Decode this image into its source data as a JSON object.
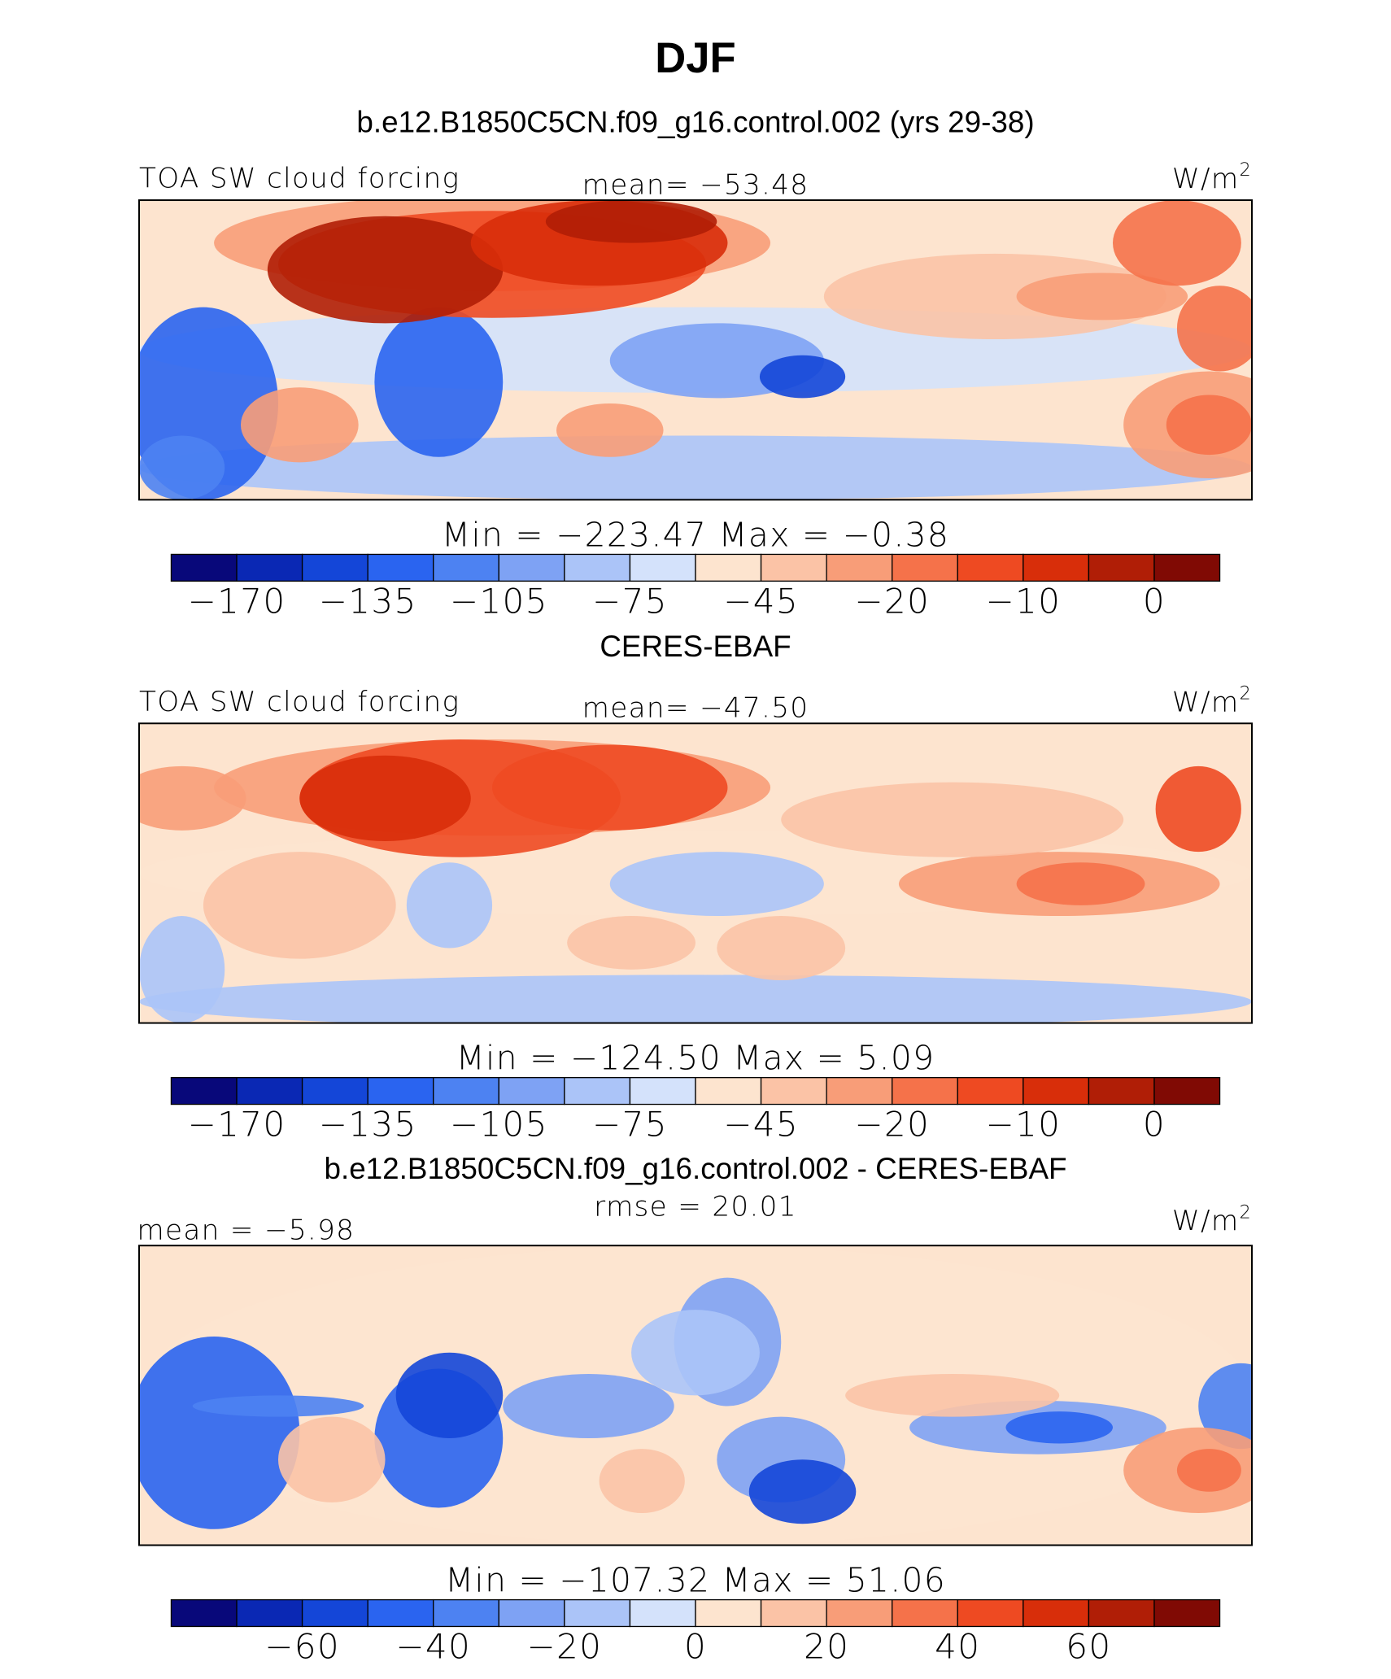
{
  "title": "DJF",
  "colorbar_colors": [
    "#08087a",
    "#0a28b4",
    "#1446d8",
    "#2a64f0",
    "#4d82f2",
    "#7ea2f4",
    "#abc4f8",
    "#d4e2fb",
    "#fde4cf",
    "#fbc3a6",
    "#f89d78",
    "#f5724a",
    "#ee4a22",
    "#d82e0a",
    "#b01e06",
    "#800a04"
  ],
  "panels": [
    {
      "header": "b.e12.B1850C5CN.f09_g16.control.002 (yrs 29-38)",
      "left": "TOA SW cloud forcing",
      "center": "mean= −53.48",
      "units": {
        "base": "W/m",
        "sup": "2"
      },
      "stats": "Min = −223.47  Max =  −0.38",
      "colorbar_ticks": [
        {
          "value": -170,
          "label": "−170"
        },
        {
          "value": -135,
          "label": "−135"
        },
        {
          "value": -105,
          "label": "−105"
        },
        {
          "value": -75,
          "label": "−75"
        },
        {
          "value": -45,
          "label": "−45"
        },
        {
          "value": -20,
          "label": "−20"
        },
        {
          "value": -10,
          "label": "−10"
        },
        0
      ]
    },
    {
      "header": "CERES-EBAF",
      "left": "TOA SW cloud forcing",
      "center": "mean= −47.50",
      "units": {
        "base": "W/m",
        "sup": "2"
      },
      "stats": "Min = −124.50  Max =   5.09",
      "colorbar_ticks": [
        {
          "value": -170,
          "label": "−170"
        },
        {
          "value": -135,
          "label": "−135"
        },
        {
          "value": -105,
          "label": "−105"
        },
        {
          "value": -75,
          "label": "−75"
        },
        {
          "value": -45,
          "label": "−45"
        },
        {
          "value": -20,
          "label": "−20"
        },
        {
          "value": -10,
          "label": "−10"
        },
        0
      ]
    },
    {
      "header": "b.e12.B1850C5CN.f09_g16.control.002 - CERES-EBAF",
      "left": "mean =  −5.98",
      "center": "rmse =  20.01",
      "units": {
        "base": "W/m",
        "sup": "2"
      },
      "stats": "Min = −107.32  Max =  51.06",
      "colorbar_ticks": [
        {
          "value": -60,
          "label": "−60"
        },
        {
          "value": -40,
          "label": "−40"
        },
        {
          "value": -20,
          "label": "−20"
        },
        0,
        20,
        40,
        60
      ]
    }
  ]
}
